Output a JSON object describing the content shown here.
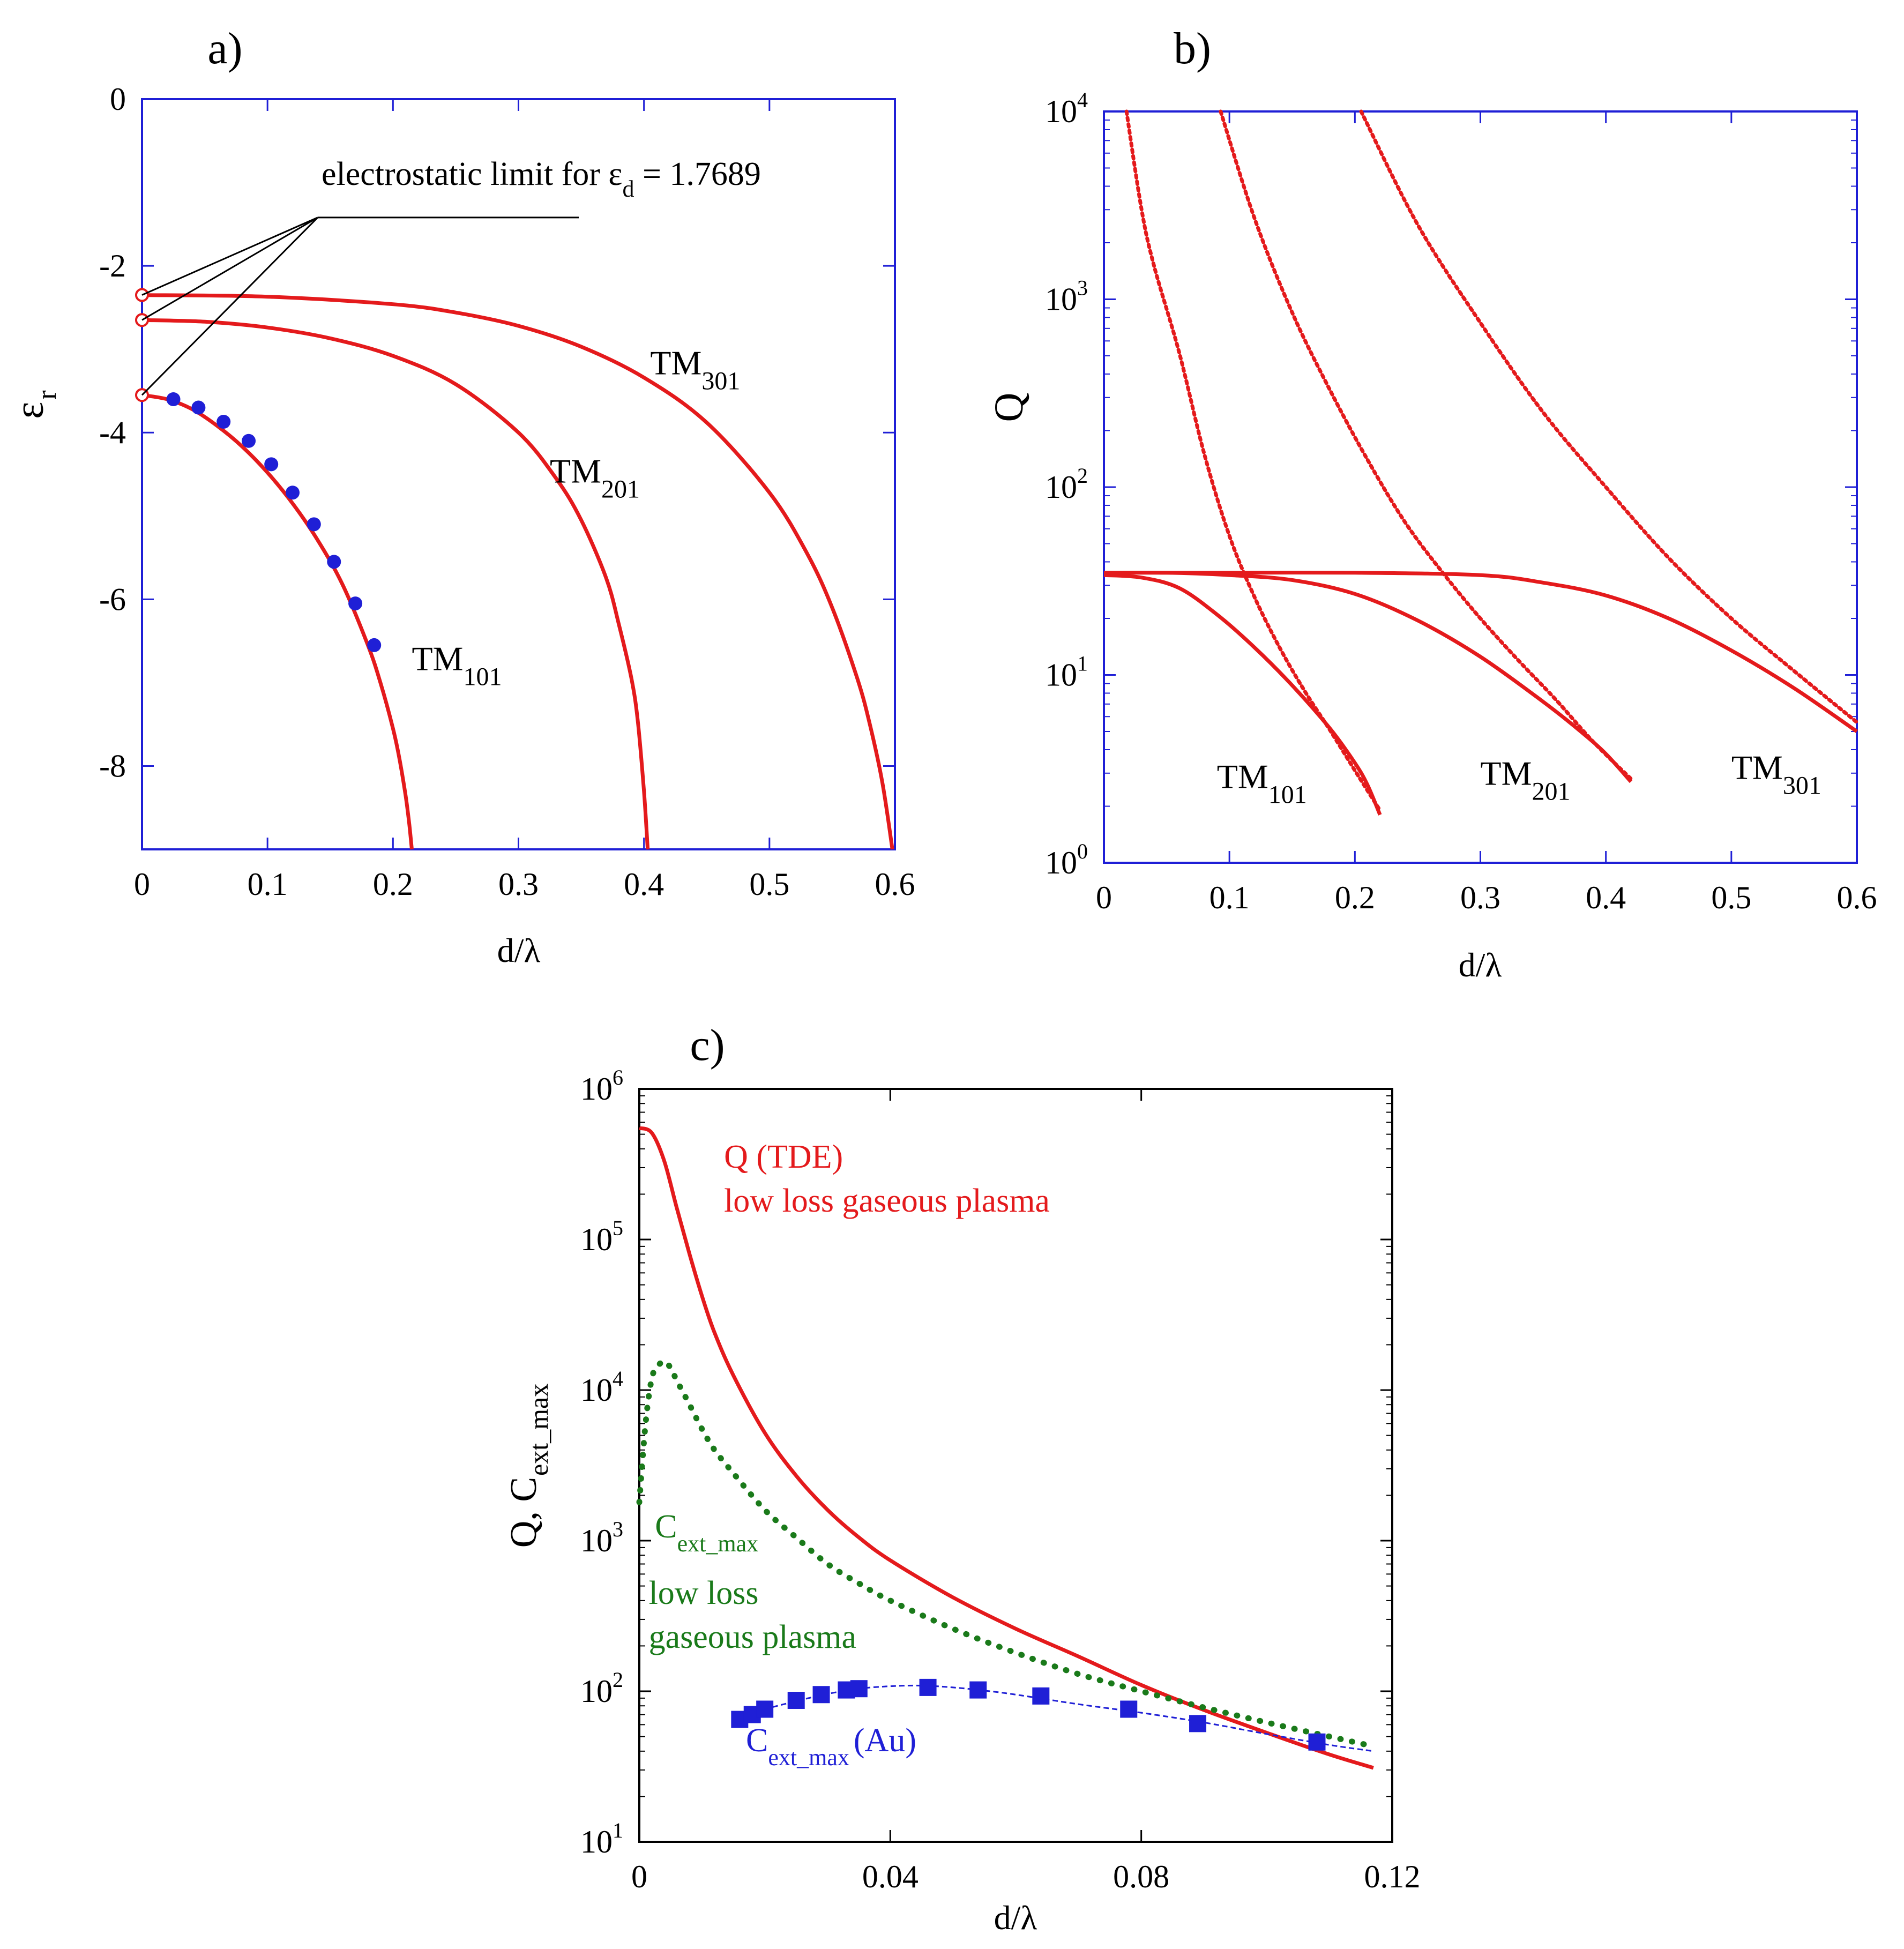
{
  "chart_data": [
    {
      "panel_label": "a)",
      "type": "line",
      "xlabel": "d/λ",
      "ylabel": "ε",
      "ylabel_sub": "r",
      "xlim": [
        0,
        0.6
      ],
      "ylim": [
        -9,
        0
      ],
      "x_ticks": [
        0,
        0.1,
        0.2,
        0.3,
        0.4,
        0.5,
        0.6
      ],
      "x_tick_labels": [
        "0",
        "0.1",
        "0.2",
        "0.3",
        "0.4",
        "0.5",
        "0.6"
      ],
      "y_ticks": [
        0,
        -2,
        -4,
        -6,
        -8
      ],
      "y_tick_labels": [
        "0",
        "-2",
        "-4",
        "-6",
        "-8"
      ],
      "annotation": {
        "text": "electrostatic limit for ε",
        "sub": "d",
        "tail": " = 1.7689",
        "x": 0.14,
        "y": -1.42,
        "targets": [
          [
            0,
            -2.35
          ],
          [
            0,
            -2.65
          ],
          [
            0,
            -3.55
          ]
        ]
      },
      "series": [
        {
          "name": "TM",
          "sub": "101",
          "label_x": 0.215,
          "label_y": -6.85,
          "color": "#e41a1c",
          "style": "solid",
          "x": [
            0,
            0.02,
            0.04,
            0.06,
            0.08,
            0.1,
            0.12,
            0.14,
            0.16,
            0.18,
            0.19,
            0.2,
            0.205,
            0.21,
            0.213,
            0.215
          ],
          "y": [
            -3.55,
            -3.6,
            -3.72,
            -3.92,
            -4.17,
            -4.48,
            -4.85,
            -5.29,
            -5.83,
            -6.55,
            -7.0,
            -7.55,
            -7.9,
            -8.35,
            -8.7,
            -9.0
          ]
        },
        {
          "name": "TM",
          "sub": "201",
          "label_x": 0.325,
          "label_y": -4.6,
          "color": "#e41a1c",
          "style": "solid",
          "x": [
            0,
            0.05,
            0.1,
            0.15,
            0.2,
            0.25,
            0.3,
            0.33,
            0.35,
            0.37,
            0.38,
            0.39,
            0.395,
            0.4,
            0.403
          ],
          "y": [
            -2.65,
            -2.67,
            -2.74,
            -2.87,
            -3.08,
            -3.42,
            -4.0,
            -4.55,
            -5.05,
            -5.75,
            -6.3,
            -6.95,
            -7.45,
            -8.3,
            -9.0
          ]
        },
        {
          "name": "TM",
          "sub": "301",
          "label_x": 0.405,
          "label_y": -3.3,
          "color": "#e41a1c",
          "style": "solid",
          "x": [
            0,
            0.1,
            0.2,
            0.25,
            0.3,
            0.35,
            0.4,
            0.45,
            0.5,
            0.53,
            0.55,
            0.57,
            0.58,
            0.59,
            0.598
          ],
          "y": [
            -2.35,
            -2.37,
            -2.46,
            -2.56,
            -2.72,
            -2.97,
            -3.34,
            -3.88,
            -4.72,
            -5.45,
            -6.1,
            -6.95,
            -7.5,
            -8.2,
            -9.0
          ]
        },
        {
          "name": "",
          "color": "#1f1fd6",
          "style": "markers",
          "x": [
            0.025,
            0.045,
            0.065,
            0.085,
            0.103,
            0.12,
            0.137,
            0.153,
            0.17,
            0.185
          ],
          "y": [
            -3.6,
            -3.7,
            -3.87,
            -4.1,
            -4.38,
            -4.72,
            -5.1,
            -5.55,
            -6.05,
            -6.55
          ]
        }
      ],
      "open_markers": {
        "x": [
          0,
          0,
          0
        ],
        "y": [
          -2.35,
          -2.65,
          -3.55
        ]
      },
      "grid": false
    },
    {
      "panel_label": "b)",
      "type": "line",
      "xlabel": "d/λ",
      "ylabel": "Q",
      "y_scale": "log",
      "xlim": [
        0,
        0.6
      ],
      "ylim": [
        1,
        10000
      ],
      "x_ticks": [
        0,
        0.1,
        0.2,
        0.3,
        0.4,
        0.5,
        0.6
      ],
      "x_tick_labels": [
        "0",
        "0.1",
        "0.2",
        "0.3",
        "0.4",
        "0.5",
        "0.6"
      ],
      "y_ticks": [
        1,
        10,
        100,
        1000,
        10000
      ],
      "y_tick_exponents": [
        "0",
        "1",
        "2",
        "3",
        "4"
      ],
      "y_tick_base": "10",
      "series": [
        {
          "name": "TM",
          "sub": "101",
          "label_x": 0.09,
          "label_y": 2.5,
          "color": "#e41a1c",
          "style": "solid",
          "x": [
            0,
            0.03,
            0.06,
            0.09,
            0.12,
            0.15,
            0.18,
            0.2,
            0.21,
            0.22
          ],
          "y": [
            34,
            33,
            29,
            21,
            14,
            8.8,
            5.2,
            3.4,
            2.6,
            1.8
          ]
        },
        {
          "name": "",
          "color": "#e41a1c",
          "style": "dotted",
          "x": [
            0.018,
            0.03,
            0.04,
            0.06,
            0.08,
            0.1,
            0.12,
            0.14,
            0.16,
            0.18,
            0.2,
            0.22
          ],
          "y": [
            10000,
            3000,
            1500,
            520,
            150,
            55,
            26,
            14,
            8.2,
            5.1,
            3.1,
            1.9
          ]
        },
        {
          "name": "TM",
          "sub": "201",
          "label_x": 0.3,
          "label_y": 2.6,
          "color": "#e41a1c",
          "style": "solid",
          "x": [
            0,
            0.05,
            0.1,
            0.15,
            0.2,
            0.25,
            0.3,
            0.35,
            0.38,
            0.4,
            0.42
          ],
          "y": [
            35,
            35,
            34,
            32,
            27,
            19.5,
            12.5,
            7.2,
            5.0,
            3.8,
            2.7
          ]
        },
        {
          "name": "",
          "color": "#e41a1c",
          "style": "dotted",
          "x": [
            0.093,
            0.12,
            0.15,
            0.18,
            0.21,
            0.24,
            0.27,
            0.3,
            0.33,
            0.36,
            0.39,
            0.42
          ],
          "y": [
            10000,
            2700,
            850,
            330,
            140,
            65,
            35,
            20,
            12,
            7.4,
            4.4,
            2.8
          ]
        },
        {
          "name": "TM",
          "sub": "301",
          "label_x": 0.5,
          "label_y": 2.8,
          "color": "#e41a1c",
          "style": "solid",
          "x": [
            0,
            0.1,
            0.2,
            0.3,
            0.35,
            0.4,
            0.45,
            0.5,
            0.55,
            0.6
          ],
          "y": [
            35,
            35,
            35,
            34,
            31,
            26.5,
            20,
            13.5,
            8.5,
            5.0
          ]
        },
        {
          "name": "",
          "color": "#e41a1c",
          "style": "dotted",
          "x": [
            0.205,
            0.25,
            0.3,
            0.35,
            0.4,
            0.45,
            0.5,
            0.55,
            0.6
          ],
          "y": [
            10000,
            2500,
            750,
            250,
            100,
            42,
            20,
            10.5,
            5.6
          ]
        }
      ],
      "grid": false
    },
    {
      "panel_label": "c)",
      "type": "line",
      "xlabel": "d/λ",
      "ylabel": "Q,  C",
      "ylabel_sub": "ext_max",
      "y_scale": "log",
      "xlim": [
        0,
        0.12
      ],
      "ylim": [
        10,
        1000000
      ],
      "x_ticks": [
        0,
        0.04,
        0.08,
        0.12
      ],
      "x_tick_labels": [
        "0",
        "0.04",
        "0.08",
        "0.12"
      ],
      "y_ticks": [
        10,
        100,
        1000,
        10000,
        100000,
        1000000
      ],
      "y_tick_exponents": [
        "1",
        "2",
        "3",
        "4",
        "5",
        "6"
      ],
      "y_tick_base": "10",
      "annotations": [
        {
          "lines": [
            "Q  (TDE)",
            "low loss gaseous plasma"
          ],
          "color": "#e41a1c",
          "x": 0.0135,
          "y": 300000
        },
        {
          "main": "C",
          "sub": "ext_max",
          "color": "#1a7a1a",
          "x": 0.0025,
          "y": 1050
        },
        {
          "lines": [
            "low loss",
            "gaseous plasma"
          ],
          "color": "#1a7a1a",
          "x": 0.0015,
          "y": 380
        },
        {
          "main": "C",
          "sub": "ext_max",
          "tail": "(Au)",
          "color": "#1f1fd6",
          "x": 0.017,
          "y": 40
        }
      ],
      "series": [
        {
          "name": "",
          "color": "#e41a1c",
          "style": "solid",
          "x": [
            0,
            0.002,
            0.004,
            0.006,
            0.008,
            0.01,
            0.012,
            0.015,
            0.02,
            0.025,
            0.03,
            0.035,
            0.04,
            0.05,
            0.06,
            0.07,
            0.08,
            0.09,
            0.1,
            0.11,
            0.117
          ],
          "y": [
            550000,
            510000,
            330000,
            160000,
            80000,
            42000,
            24000,
            12500,
            5200,
            2700,
            1600,
            1050,
            740,
            420,
            260,
            170,
            110,
            75,
            53,
            38,
            31
          ]
        },
        {
          "name": "",
          "color": "#1a7a1a",
          "style": "dotted",
          "x": [
            0,
            0.001,
            0.002,
            0.003,
            0.004,
            0.005,
            0.006,
            0.008,
            0.01,
            0.012,
            0.015,
            0.02,
            0.025,
            0.03,
            0.035,
            0.04,
            0.05,
            0.06,
            0.07,
            0.08,
            0.09,
            0.1,
            0.11,
            0.116
          ],
          "y": [
            1800,
            6000,
            12000,
            14500,
            15500,
            14000,
            11500,
            8000,
            5500,
            4000,
            2800,
            1600,
            1050,
            700,
            520,
            400,
            260,
            180,
            130,
            100,
            78,
            62,
            50,
            44
          ]
        },
        {
          "name": "",
          "color": "#1f1fd6",
          "style": "dashed",
          "x": [
            0.016,
            0.02,
            0.025,
            0.03,
            0.035,
            0.04,
            0.045,
            0.05,
            0.055,
            0.06,
            0.07,
            0.08,
            0.09,
            0.1,
            0.11,
            0.117
          ],
          "y": [
            68,
            76,
            86,
            96,
            104,
            108,
            109,
            106,
            101,
            95,
            82,
            72,
            62,
            52,
            44,
            40
          ]
        },
        {
          "name": "",
          "color": "#1f1fd6",
          "style": "square_markers",
          "x": [
            0.016,
            0.018,
            0.02,
            0.025,
            0.029,
            0.033,
            0.035,
            0.046,
            0.054,
            0.064,
            0.078,
            0.089,
            0.108
          ],
          "y": [
            65,
            70,
            76,
            87,
            95,
            102,
            104,
            106,
            102,
            93,
            76,
            61,
            46
          ]
        }
      ],
      "grid": false
    }
  ]
}
